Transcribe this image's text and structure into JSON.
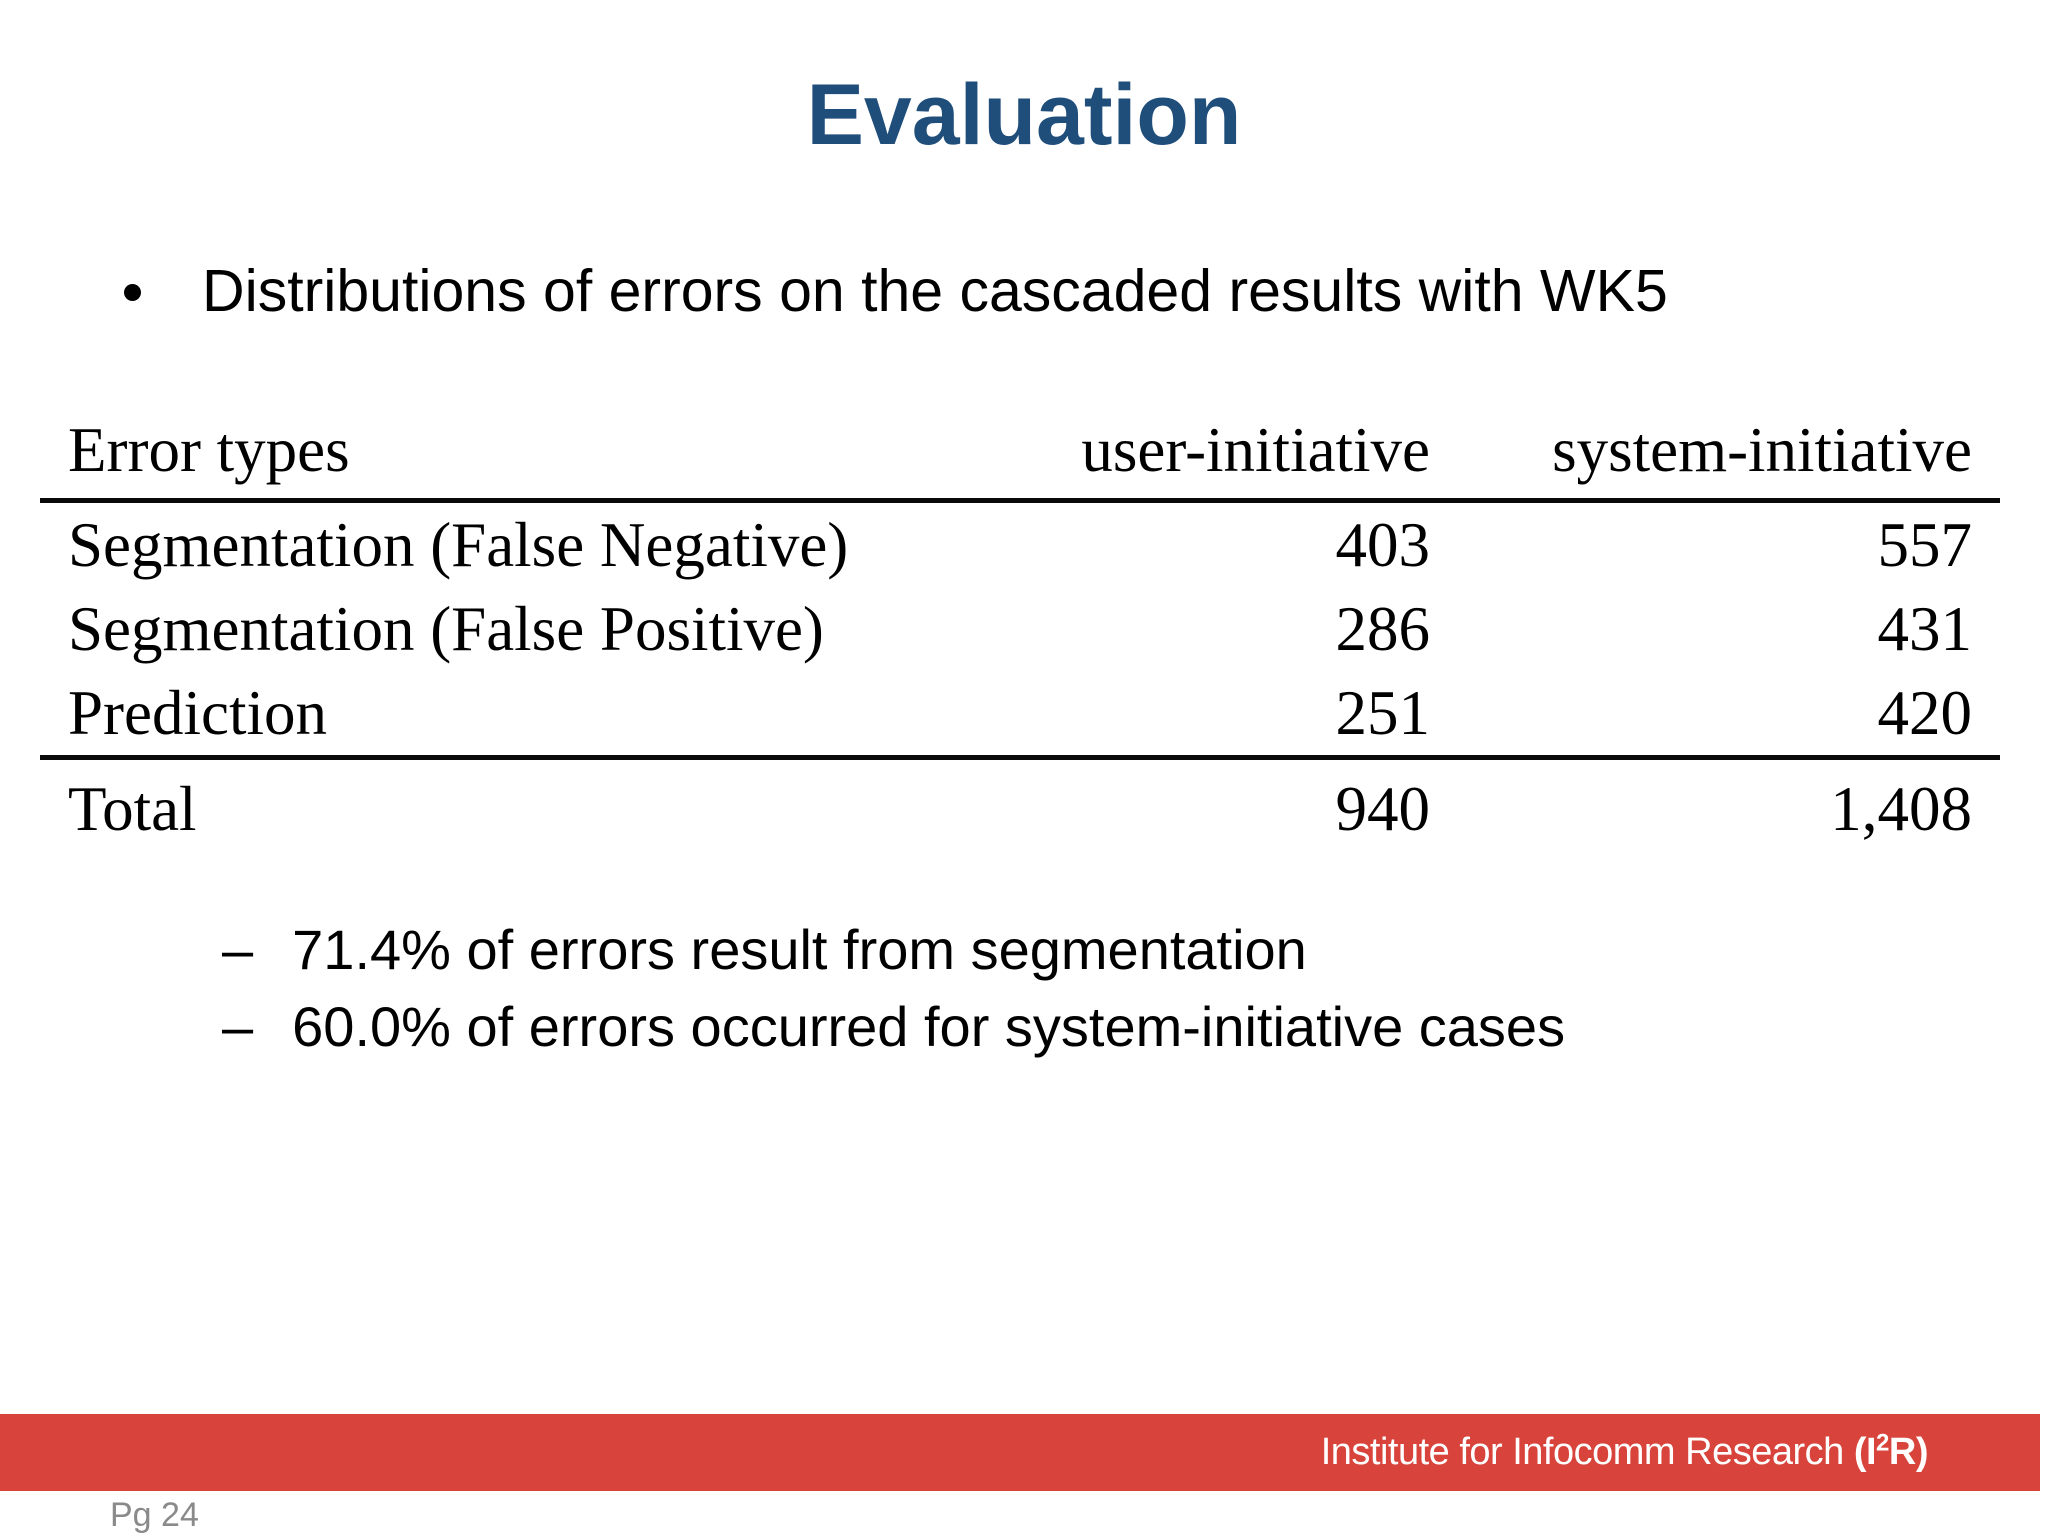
{
  "slide": {
    "title": "Evaluation",
    "bullet": {
      "marker": "•",
      "text": "Distributions of errors on the cascaded results with WK5"
    },
    "table": {
      "headers": [
        "Error types",
        "user-initiative",
        "system-initiative"
      ],
      "rows": [
        [
          "Segmentation (False Negative)",
          "403",
          "557"
        ],
        [
          "Segmentation (False Positive)",
          "286",
          "431"
        ],
        [
          "Prediction",
          "251",
          "420"
        ]
      ],
      "total_row": [
        "Total",
        "940",
        "1,408"
      ]
    },
    "sub_bullets": {
      "marker": "–",
      "items": [
        "71.4% of errors result from segmentation",
        "60.0% of errors occurred for system-initiative cases"
      ]
    },
    "footer": {
      "org_light": "Institute for Infocomm Research ",
      "org_bold_pre": "(I",
      "org_sup": "2",
      "org_bold_post": "R)"
    },
    "page_label": "Pg 24"
  },
  "colors": {
    "title_blue": "#1f4e7b",
    "footer_red": "#d8443b",
    "page_label_gray": "#8a8a8a"
  }
}
